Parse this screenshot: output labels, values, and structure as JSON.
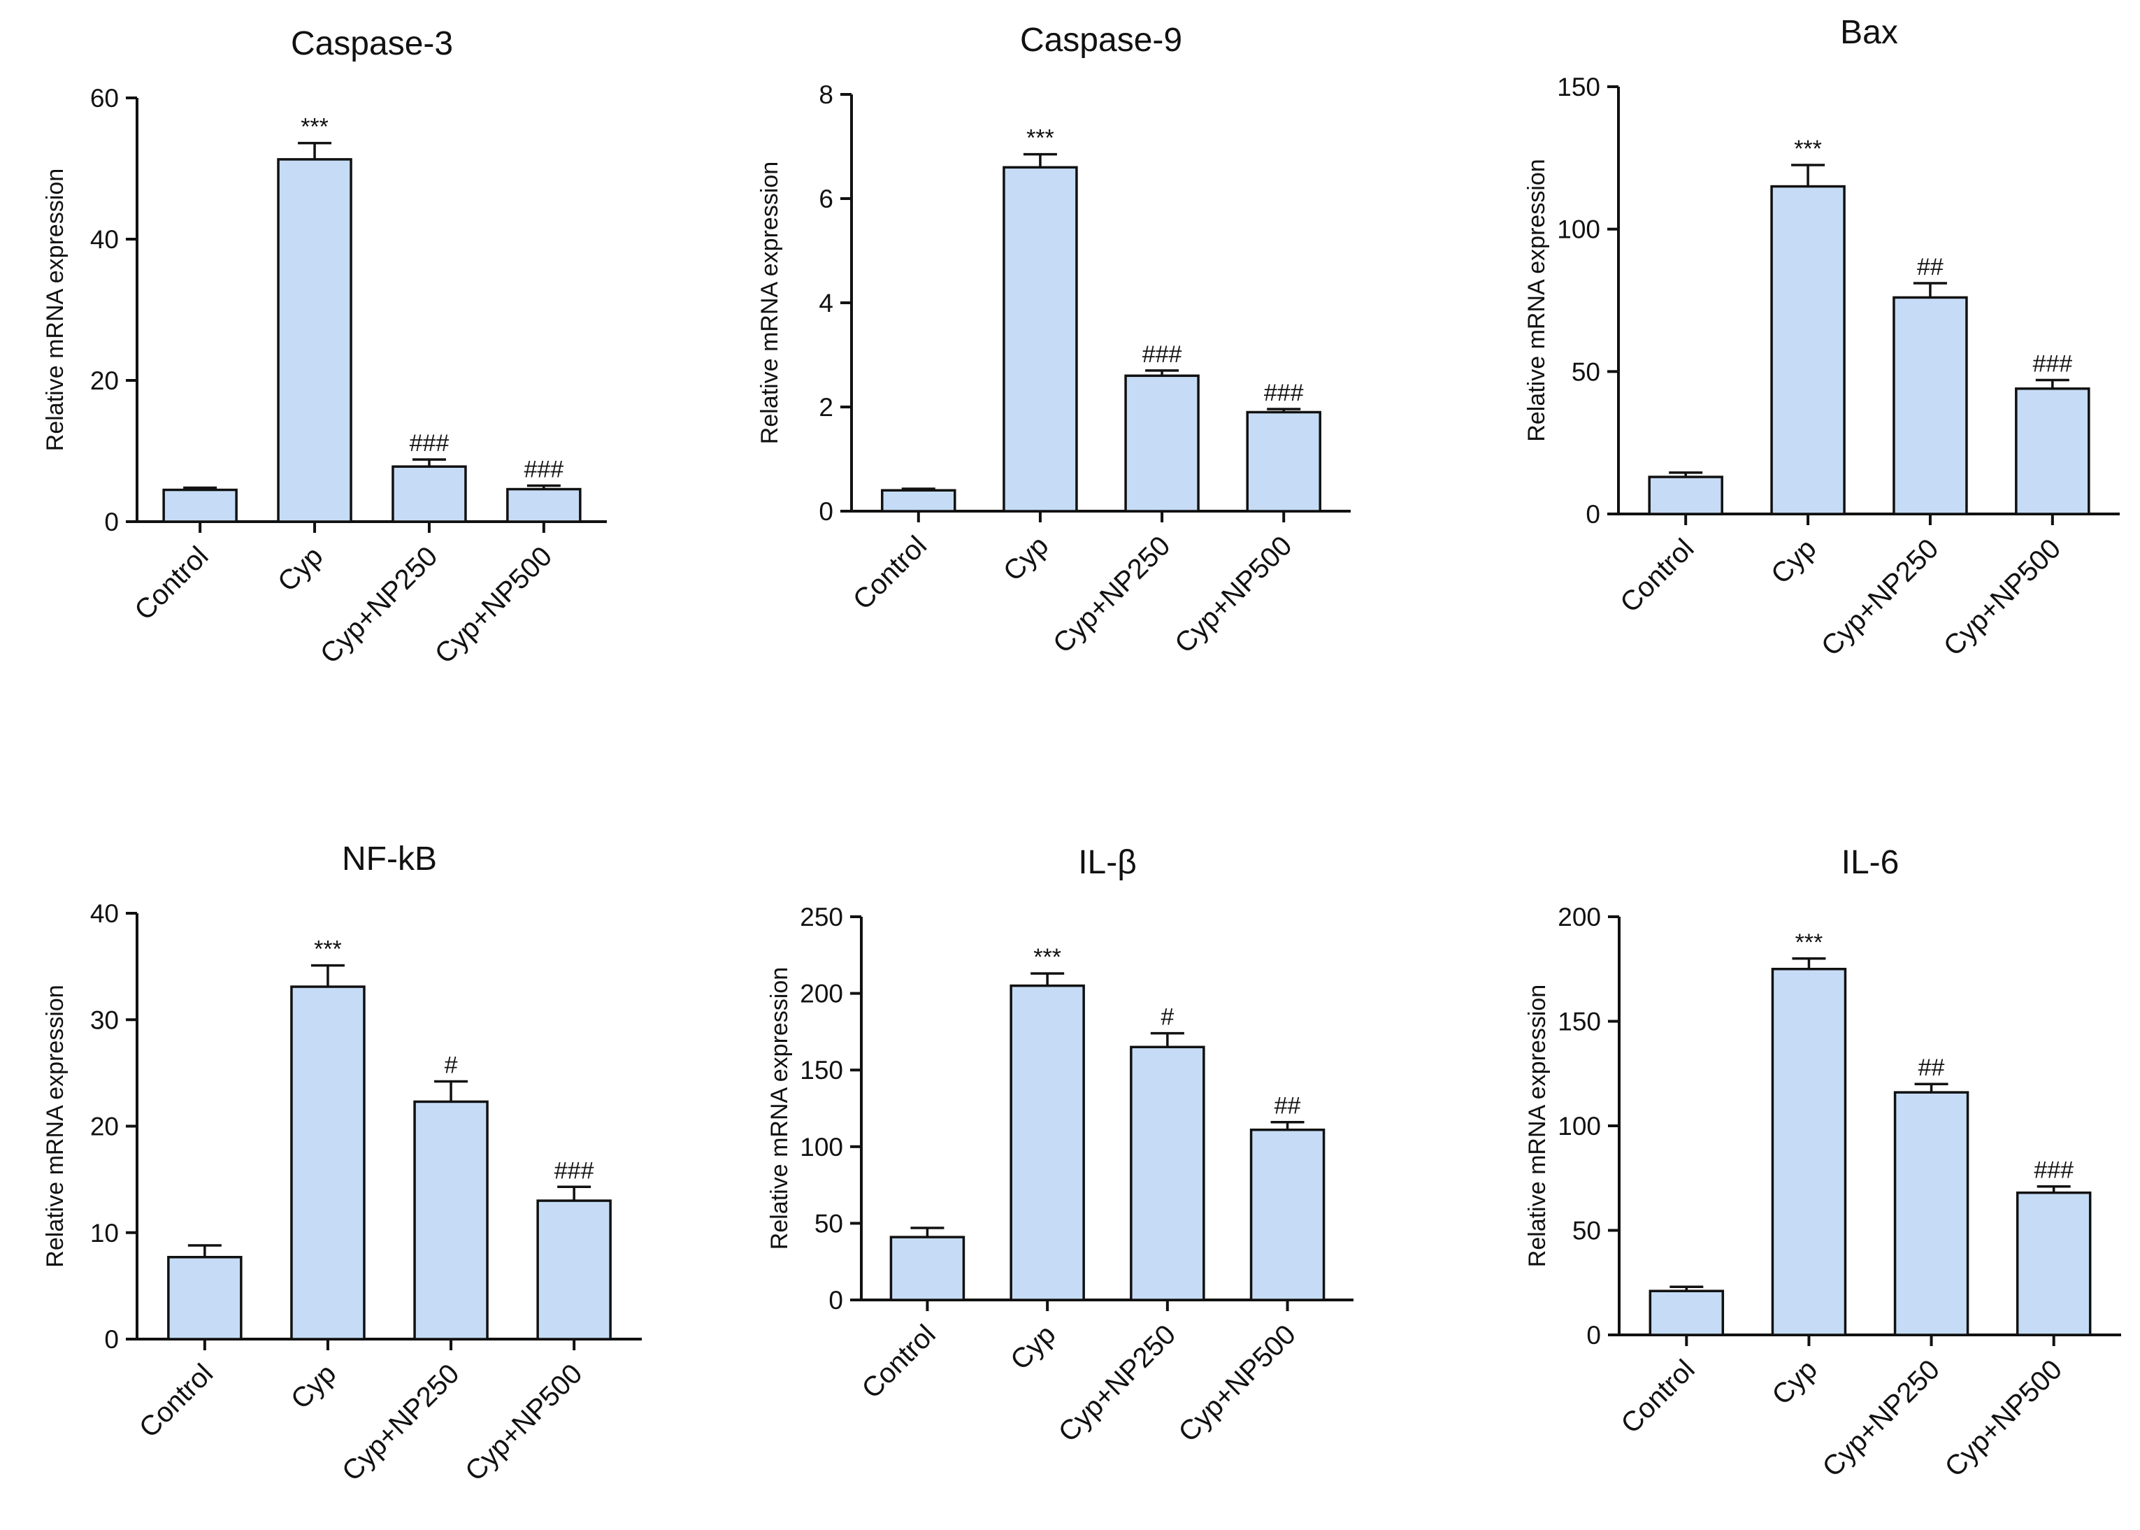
{
  "colors": {
    "bar_fill": "#c6dcf6",
    "stroke": "#111111"
  },
  "chart_data": [
    {
      "type": "bar",
      "title": "Caspase-3",
      "ylabel": "Relative mRNA expression",
      "xlabel": "",
      "categories": [
        "Control",
        "Cyp",
        "Cyp+NP250",
        "Cyp+NP500"
      ],
      "values": [
        4.5,
        51.3,
        7.8,
        4.6
      ],
      "errors": [
        0.3,
        2.3,
        1.0,
        0.5
      ],
      "annotations": [
        "",
        "***",
        "###",
        "###"
      ],
      "ylim": [
        0,
        60
      ],
      "yticks": [
        0,
        20,
        40,
        60
      ]
    },
    {
      "type": "bar",
      "title": "Caspase-9",
      "ylabel": "Relative mRNA expression",
      "xlabel": "",
      "categories": [
        "Control",
        "Cyp",
        "Cyp+NP250",
        "Cyp+NP500"
      ],
      "values": [
        0.4,
        6.6,
        2.6,
        1.9
      ],
      "errors": [
        0.03,
        0.25,
        0.1,
        0.06
      ],
      "annotations": [
        "",
        "***",
        "###",
        "###"
      ],
      "ylim": [
        0,
        8
      ],
      "yticks": [
        0,
        2,
        4,
        6,
        8
      ]
    },
    {
      "type": "bar",
      "title": "Bax",
      "ylabel": "Relative mRNA expression",
      "xlabel": "",
      "categories": [
        "Control",
        "Cyp",
        "Cyp+NP250",
        "Cyp+NP500"
      ],
      "values": [
        13,
        115,
        76,
        44
      ],
      "errors": [
        1.5,
        7.5,
        5,
        3
      ],
      "annotations": [
        "",
        "***",
        "##",
        "###"
      ],
      "ylim": [
        0,
        150
      ],
      "yticks": [
        0,
        50,
        100,
        150
      ]
    },
    {
      "type": "bar",
      "title": "NF-kB",
      "ylabel": "Relative mRNA expression",
      "xlabel": "",
      "categories": [
        "Control",
        "Cyp",
        "Cyp+NP250",
        "Cyp+NP500"
      ],
      "values": [
        7.7,
        33.1,
        22.3,
        13.0
      ],
      "errors": [
        1.1,
        2.0,
        1.9,
        1.3
      ],
      "annotations": [
        "",
        "***",
        "#",
        "###"
      ],
      "ylim": [
        0,
        40
      ],
      "yticks": [
        0,
        10,
        20,
        30,
        40
      ]
    },
    {
      "type": "bar",
      "title": "IL-β",
      "ylabel": "Relative mRNA expression",
      "xlabel": "",
      "categories": [
        "Control",
        "Cyp",
        "Cyp+NP250",
        "Cyp+NP500"
      ],
      "values": [
        41,
        205,
        165,
        111
      ],
      "errors": [
        6,
        8,
        9,
        5
      ],
      "annotations": [
        "",
        "***",
        "#",
        "##"
      ],
      "ylim": [
        0,
        250
      ],
      "yticks": [
        0,
        50,
        100,
        150,
        200,
        250
      ]
    },
    {
      "type": "bar",
      "title": "IL-6",
      "ylabel": "Relative mRNA expression",
      "xlabel": "",
      "categories": [
        "Control",
        "Cyp",
        "Cyp+NP250",
        "Cyp+NP500"
      ],
      "values": [
        21,
        175,
        116,
        68
      ],
      "errors": [
        2,
        5,
        4,
        3
      ],
      "annotations": [
        "",
        "***",
        "##",
        "###"
      ],
      "ylim": [
        0,
        200
      ],
      "yticks": [
        0,
        50,
        100,
        150,
        200
      ]
    }
  ]
}
